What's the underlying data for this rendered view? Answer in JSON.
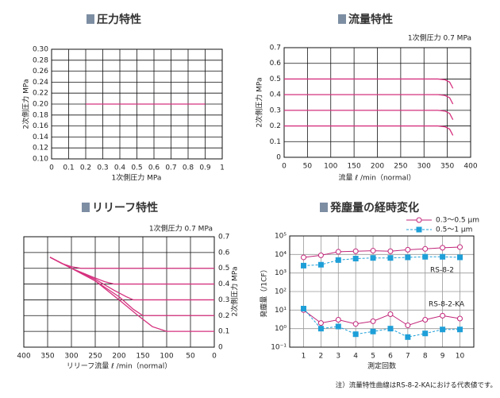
{
  "chart_data": [
    {
      "type": "line",
      "title": "圧力特性",
      "x_label": "1次側圧力 MPa",
      "y_label": "2次側圧力 MPa",
      "xlim": [
        0,
        1
      ],
      "xticks": [
        0,
        0.1,
        0.2,
        0.3,
        0.4,
        0.5,
        0.6,
        0.7,
        0.8,
        0.9,
        1
      ],
      "ylim": [
        0.1,
        0.3
      ],
      "yticks": [
        {
          "value": 0.1,
          "label": "0.10"
        },
        {
          "value": 0.12,
          "label": "0.12"
        },
        {
          "value": 0.14,
          "label": "0.14"
        },
        {
          "value": 0.16,
          "label": "0.16"
        },
        {
          "value": 0.18,
          "label": "0.18"
        },
        {
          "value": 0.2,
          "label": "0.20"
        },
        {
          "value": 0.22,
          "label": "0.22"
        },
        {
          "value": 0.24,
          "label": "0.24"
        },
        {
          "value": 0.26,
          "label": "0.26"
        },
        {
          "value": 0.28,
          "label": "0.28"
        },
        {
          "value": 0.3,
          "label": "0.30"
        }
      ],
      "grid": true,
      "series": [
        {
          "color": "#d6327f",
          "x": [
            0.2,
            0.9
          ],
          "values": [
            0.2,
            0.2
          ]
        }
      ]
    },
    {
      "type": "line",
      "title": "流量特性",
      "subtitle": "1次側圧力 0.7 MPa",
      "x_label": "流量 ℓ /min（normal）",
      "y_label": "2次側圧力 MPa",
      "xlim": [
        0,
        400
      ],
      "xticks": [
        0,
        50,
        100,
        150,
        200,
        250,
        300,
        350,
        400
      ],
      "ylim": [
        0,
        0.7
      ],
      "yticks": [
        0,
        0.1,
        0.2,
        0.3,
        0.4,
        0.5,
        0.6,
        0.7
      ],
      "grid": true,
      "series": [
        {
          "color": "#d6327f",
          "x": [
            0,
            330,
            345,
            355,
            362
          ],
          "values": [
            0.5,
            0.5,
            0.495,
            0.48,
            0.44
          ]
        },
        {
          "color": "#d6327f",
          "x": [
            0,
            330,
            345,
            355,
            362
          ],
          "values": [
            0.4,
            0.4,
            0.395,
            0.38,
            0.34
          ]
        },
        {
          "color": "#d6327f",
          "x": [
            0,
            330,
            345,
            355,
            362
          ],
          "values": [
            0.3,
            0.3,
            0.295,
            0.28,
            0.24
          ]
        },
        {
          "color": "#d6327f",
          "x": [
            0,
            330,
            345,
            355,
            362
          ],
          "values": [
            0.2,
            0.2,
            0.195,
            0.18,
            0.14
          ]
        }
      ]
    },
    {
      "type": "line",
      "title": "リリーフ特性",
      "subtitle": "1次側圧力 0.7 MPa",
      "x_label": "リリーフ流量 ℓ /min（normal）",
      "y_label": "2次側圧力 MPa",
      "xlim": [
        400,
        0
      ],
      "xticks": [
        400,
        350,
        300,
        250,
        200,
        150,
        100,
        50,
        0
      ],
      "ylim": [
        0,
        0.7
      ],
      "yticks": [
        0,
        0.1,
        0.2,
        0.3,
        0.4,
        0.5,
        0.6,
        0.7
      ],
      "grid": true,
      "y_axis_side": "right",
      "series": [
        {
          "color": "#d6327f",
          "x": [
            345,
            320,
            300,
            280,
            0
          ],
          "values": [
            0.57,
            0.53,
            0.51,
            0.5,
            0.5
          ]
        },
        {
          "color": "#d6327f",
          "x": [
            345,
            300,
            260,
            230,
            210,
            0
          ],
          "values": [
            0.57,
            0.5,
            0.45,
            0.415,
            0.4,
            0.4
          ]
        },
        {
          "color": "#d6327f",
          "x": [
            345,
            300,
            250,
            210,
            185,
            170,
            0
          ],
          "values": [
            0.57,
            0.5,
            0.43,
            0.36,
            0.32,
            0.3,
            0.3
          ]
        },
        {
          "color": "#d6327f",
          "x": [
            345,
            300,
            250,
            200,
            170,
            150,
            0
          ],
          "values": [
            0.57,
            0.5,
            0.42,
            0.32,
            0.24,
            0.2,
            0.2
          ]
        },
        {
          "color": "#d6327f",
          "x": [
            345,
            300,
            250,
            200,
            160,
            130,
            100,
            0
          ],
          "values": [
            0.57,
            0.5,
            0.42,
            0.3,
            0.2,
            0.13,
            0.1,
            0.1
          ]
        }
      ]
    },
    {
      "type": "log-line",
      "title": "発塵量の経時変化",
      "x_label": "測定回数",
      "y_label": "発塵量（/1CF）",
      "x": [
        1,
        2,
        3,
        4,
        5,
        6,
        7,
        8,
        9,
        10
      ],
      "xlim": [
        0.2,
        10.8
      ],
      "xticks": [
        1,
        2,
        3,
        4,
        5,
        6,
        7,
        8,
        9,
        10
      ],
      "ylim": [
        0.1,
        100000
      ],
      "log_y": true,
      "yticks": [
        {
          "value": 0.1,
          "label": "10⁻¹"
        },
        {
          "value": 1,
          "label": "10⁰"
        },
        {
          "value": 10,
          "label": "10¹"
        },
        {
          "value": 100,
          "label": "10²"
        },
        {
          "value": 1000,
          "label": "10³"
        },
        {
          "value": 10000,
          "label": "10⁴"
        },
        {
          "value": 100000,
          "label": "10⁵"
        }
      ],
      "grid": true,
      "legend": [
        {
          "name": "0.3〜0.5 μm",
          "color": "#c2267a",
          "marker": "circle",
          "dash": false
        },
        {
          "name": "0.5〜1 μm",
          "color": "#1e9fd8",
          "marker": "square",
          "dash": true
        }
      ],
      "groups": [
        {
          "label": "RS-8-2",
          "series": [
            [
              7000,
              9000,
              14000,
              15000,
              16000,
              15000,
              18000,
              20000,
              23000,
              25000
            ],
            [
              2500,
              2800,
              5000,
              6000,
              6500,
              6500,
              7000,
              7500,
              7500,
              7000
            ]
          ]
        },
        {
          "label": "RS-8-2-KA",
          "series": [
            [
              10,
              2,
              3,
              1.8,
              2.5,
              6,
              1.5,
              3,
              5,
              3.5
            ],
            [
              12,
              1,
              1.3,
              0.5,
              0.7,
              1,
              0.35,
              0.55,
              0.9,
              0.9
            ]
          ]
        }
      ]
    }
  ],
  "note": "注）流量特性曲線はRS-8-2-KAにおける代表値です。"
}
